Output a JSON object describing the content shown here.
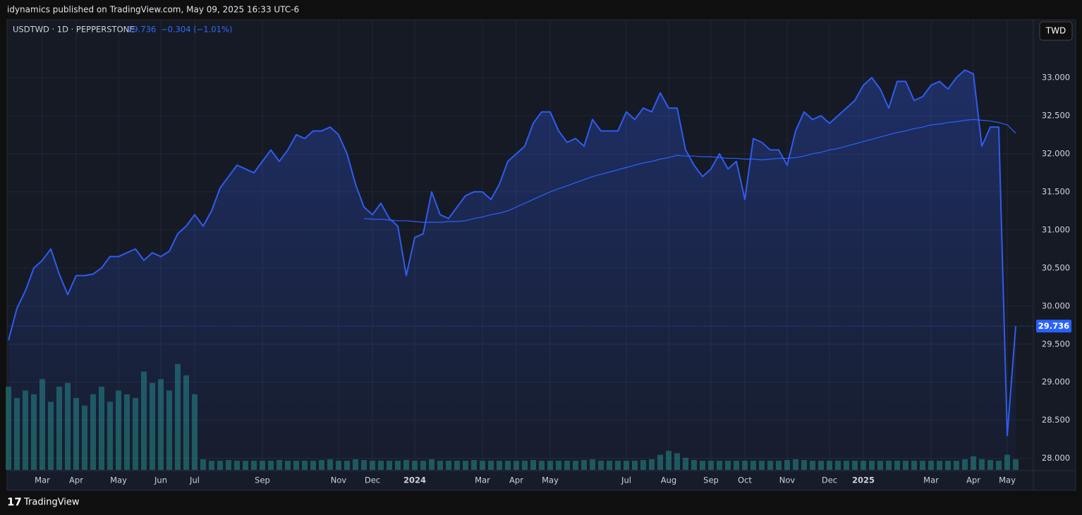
{
  "header": {
    "publisher": "idynamics published on TradingView.com, May 09, 2025 16:33 UTC-6"
  },
  "footer": {
    "brand": "TradingView"
  },
  "chart_data": {
    "type": "line",
    "symbol": "USDTWD · 1D · PEPPERSTONE",
    "change": "−0.304 (−1.01%)",
    "currency": "TWD",
    "categories": [
      null,
      null,
      null,
      null,
      "Mar",
      null,
      null,
      null,
      "Apr",
      null,
      null,
      null,
      null,
      "May",
      null,
      null,
      null,
      null,
      "Jun",
      null,
      null,
      null,
      "Jul",
      null,
      null,
      null,
      null,
      null,
      null,
      null,
      "Sep",
      null,
      null,
      null,
      null,
      null,
      null,
      null,
      null,
      "Nov",
      null,
      null,
      null,
      "Dec",
      null,
      null,
      null,
      null,
      "2024",
      null,
      null,
      null,
      null,
      null,
      null,
      null,
      "Mar",
      null,
      null,
      null,
      "Apr",
      null,
      null,
      null,
      "May",
      null,
      null,
      null,
      null,
      null,
      null,
      null,
      null,
      "Jul",
      null,
      null,
      null,
      null,
      "Aug",
      null,
      null,
      null,
      null,
      "Sep",
      null,
      null,
      null,
      "Oct",
      null,
      null,
      null,
      null,
      "Nov",
      null,
      null,
      null,
      null,
      "Dec",
      null,
      null,
      null,
      "2025",
      null,
      null,
      null,
      null,
      null,
      null,
      null,
      "Mar",
      null,
      null,
      null,
      null,
      "Apr",
      null,
      null,
      null,
      "May",
      null
    ],
    "series": [
      {
        "color": "#2f5cf0",
        "values": [
          29.55,
          29.97,
          30.2,
          30.5,
          30.6,
          30.75,
          30.42,
          30.15,
          30.4,
          30.4,
          30.42,
          30.5,
          30.65,
          30.65,
          30.7,
          30.75,
          30.6,
          30.7,
          30.65,
          30.72,
          30.95,
          31.05,
          31.2,
          31.05,
          31.25,
          31.55,
          31.7,
          31.85,
          31.8,
          31.75,
          31.9,
          32.05,
          31.9,
          32.05,
          32.25,
          32.2,
          32.3,
          32.3,
          32.35,
          32.25,
          32.0,
          31.6,
          31.3,
          31.2,
          31.35,
          31.15,
          31.05,
          30.4,
          30.9,
          30.95,
          31.5,
          31.2,
          31.15,
          31.3,
          31.45,
          31.5,
          31.5,
          31.4,
          31.6,
          31.9,
          32.0,
          32.1,
          32.4,
          32.55,
          32.55,
          32.3,
          32.15,
          32.2,
          32.1,
          32.45,
          32.3,
          32.3,
          32.3,
          32.55,
          32.45,
          32.6,
          32.55,
          32.8,
          32.6,
          32.6,
          32.05,
          31.85,
          31.7,
          31.8,
          32.0,
          31.8,
          31.9,
          31.4,
          32.2,
          32.15,
          32.05,
          32.05,
          31.85,
          32.3,
          32.55,
          32.45,
          32.5,
          32.4,
          32.5,
          32.6,
          32.7,
          32.9,
          33.0,
          32.85,
          32.6,
          32.95,
          32.95,
          32.7,
          32.75,
          32.9,
          32.95,
          32.85,
          33.0,
          33.1,
          33.05,
          32.1,
          32.35,
          32.35,
          28.3,
          29.736
        ]
      },
      {
        "color": "#2962ff",
        "values": [
          null,
          null,
          null,
          null,
          null,
          null,
          null,
          null,
          null,
          null,
          null,
          null,
          null,
          null,
          null,
          null,
          null,
          null,
          null,
          null,
          null,
          null,
          null,
          null,
          null,
          null,
          null,
          null,
          null,
          null,
          null,
          null,
          null,
          null,
          null,
          null,
          null,
          null,
          null,
          null,
          null,
          null,
          31.15,
          31.14,
          31.14,
          31.13,
          31.12,
          31.12,
          31.11,
          31.1,
          31.1,
          31.1,
          31.11,
          31.11,
          31.12,
          31.15,
          31.17,
          31.2,
          31.22,
          31.25,
          31.3,
          31.35,
          31.4,
          31.45,
          31.5,
          31.54,
          31.58,
          31.62,
          31.66,
          31.7,
          31.73,
          31.76,
          31.79,
          31.82,
          31.85,
          31.88,
          31.9,
          31.93,
          31.95,
          31.98,
          31.97,
          31.97,
          31.96,
          31.96,
          31.95,
          31.94,
          31.94,
          31.93,
          31.93,
          31.92,
          31.93,
          31.94,
          31.94,
          31.95,
          31.97,
          32.0,
          32.02,
          32.05,
          32.07,
          32.1,
          32.13,
          32.16,
          32.19,
          32.22,
          32.25,
          32.28,
          32.3,
          32.33,
          32.35,
          32.38,
          32.39,
          32.41,
          32.42,
          32.44,
          32.45,
          32.44,
          32.43,
          32.41,
          32.38,
          32.27
        ]
      }
    ],
    "volume": {
      "color": "#26a69a",
      "values": [
        110,
        95,
        105,
        100,
        120,
        90,
        110,
        115,
        95,
        85,
        100,
        110,
        90,
        105,
        100,
        95,
        130,
        115,
        120,
        105,
        140,
        125,
        100,
        14,
        12,
        12,
        13,
        12,
        12,
        12,
        12,
        12,
        13,
        12,
        12,
        12,
        12,
        13,
        14,
        12,
        12,
        14,
        13,
        12,
        12,
        12,
        12,
        13,
        12,
        12,
        14,
        12,
        12,
        12,
        12,
        13,
        12,
        12,
        12,
        12,
        12,
        12,
        13,
        12,
        12,
        12,
        12,
        12,
        13,
        14,
        12,
        12,
        12,
        12,
        12,
        13,
        14,
        20,
        25,
        22,
        16,
        13,
        12,
        12,
        12,
        12,
        12,
        12,
        12,
        12,
        12,
        12,
        13,
        14,
        13,
        12,
        12,
        12,
        12,
        12,
        12,
        12,
        12,
        12,
        12,
        12,
        12,
        12,
        12,
        12,
        12,
        12,
        12,
        14,
        18,
        14,
        13,
        12,
        20,
        14
      ]
    },
    "ylim": [
      27.58,
      33.76
    ],
    "yticks": [
      {
        "value": 28,
        "label": "28.000"
      },
      {
        "value": 28.5,
        "label": "28.500"
      },
      {
        "value": 29,
        "label": "29.000"
      },
      {
        "value": 29.5,
        "label": "29.500"
      },
      {
        "value": 30,
        "label": "30.000"
      },
      {
        "value": 30.5,
        "label": "30.500"
      },
      {
        "value": 31,
        "label": "31.000"
      },
      {
        "value": 31.5,
        "label": "31.500"
      },
      {
        "value": 32,
        "label": "32.000"
      },
      {
        "value": 32.5,
        "label": "32.500"
      },
      {
        "value": 33,
        "label": "33.000"
      }
    ],
    "grid": true
  }
}
